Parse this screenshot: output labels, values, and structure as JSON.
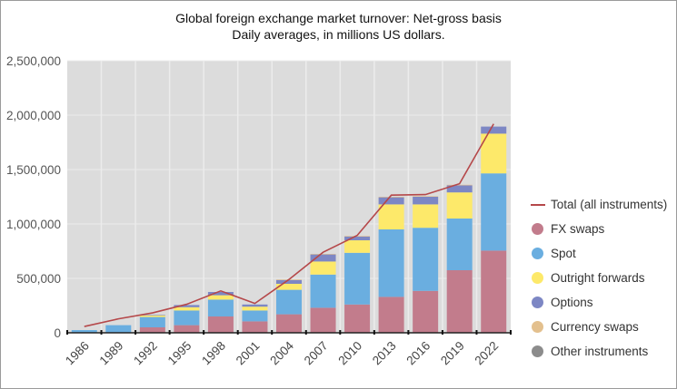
{
  "chart_data": {
    "type": "bar",
    "stacked": true,
    "title": "Global foreign exchange market turnover: Net-gross basis",
    "subtitle": "Daily averages, in millions US dollars.",
    "xlabel": "",
    "ylabel": "",
    "ylim": [
      0,
      2500000
    ],
    "yticks": [
      "0",
      "500,000",
      "1,000,000",
      "1,500,000",
      "2,000,000",
      "2,500,000"
    ],
    "grid": true,
    "legend_position": "right",
    "categories": [
      "1986",
      "1989",
      "1992",
      "1995",
      "1998",
      "2001",
      "2004",
      "2007",
      "2010",
      "2013",
      "2016",
      "2019",
      "2022"
    ],
    "series": [
      {
        "name": "FX swaps",
        "color": "#c27c8c",
        "values": [
          0,
          0,
          50000,
          70000,
          150000,
          105000,
          170000,
          230000,
          260000,
          330000,
          385000,
          575000,
          755000
        ]
      },
      {
        "name": "Spot",
        "color": "#6aaee0",
        "values": [
          25000,
          70000,
          95000,
          135000,
          155000,
          100000,
          225000,
          305000,
          475000,
          620000,
          580000,
          475000,
          710000
        ]
      },
      {
        "name": "Outright forwards",
        "color": "#fde96a",
        "values": [
          0,
          0,
          15000,
          30000,
          40000,
          35000,
          55000,
          120000,
          115000,
          230000,
          215000,
          240000,
          365000
        ]
      },
      {
        "name": "Options",
        "color": "#7d87c4",
        "values": [
          0,
          0,
          5000,
          20000,
          30000,
          20000,
          35000,
          65000,
          35000,
          65000,
          70000,
          65000,
          65000
        ]
      },
      {
        "name": "Currency swaps",
        "color": "#e3c08e",
        "values": [
          0,
          0,
          0,
          0,
          0,
          0,
          5000,
          5000,
          5000,
          5000,
          5000,
          5000,
          0
        ]
      },
      {
        "name": "Other instruments",
        "color": "#8c8c8c",
        "values": [
          0,
          0,
          0,
          0,
          0,
          0,
          0,
          0,
          0,
          0,
          0,
          0,
          0
        ]
      }
    ],
    "line": {
      "name": "Total (all instruments)",
      "color": "#b5484a",
      "values": [
        58000,
        128000,
        183000,
        262000,
        385000,
        270000,
        490000,
        740000,
        895000,
        1265000,
        1270000,
        1370000,
        1920000
      ]
    }
  }
}
